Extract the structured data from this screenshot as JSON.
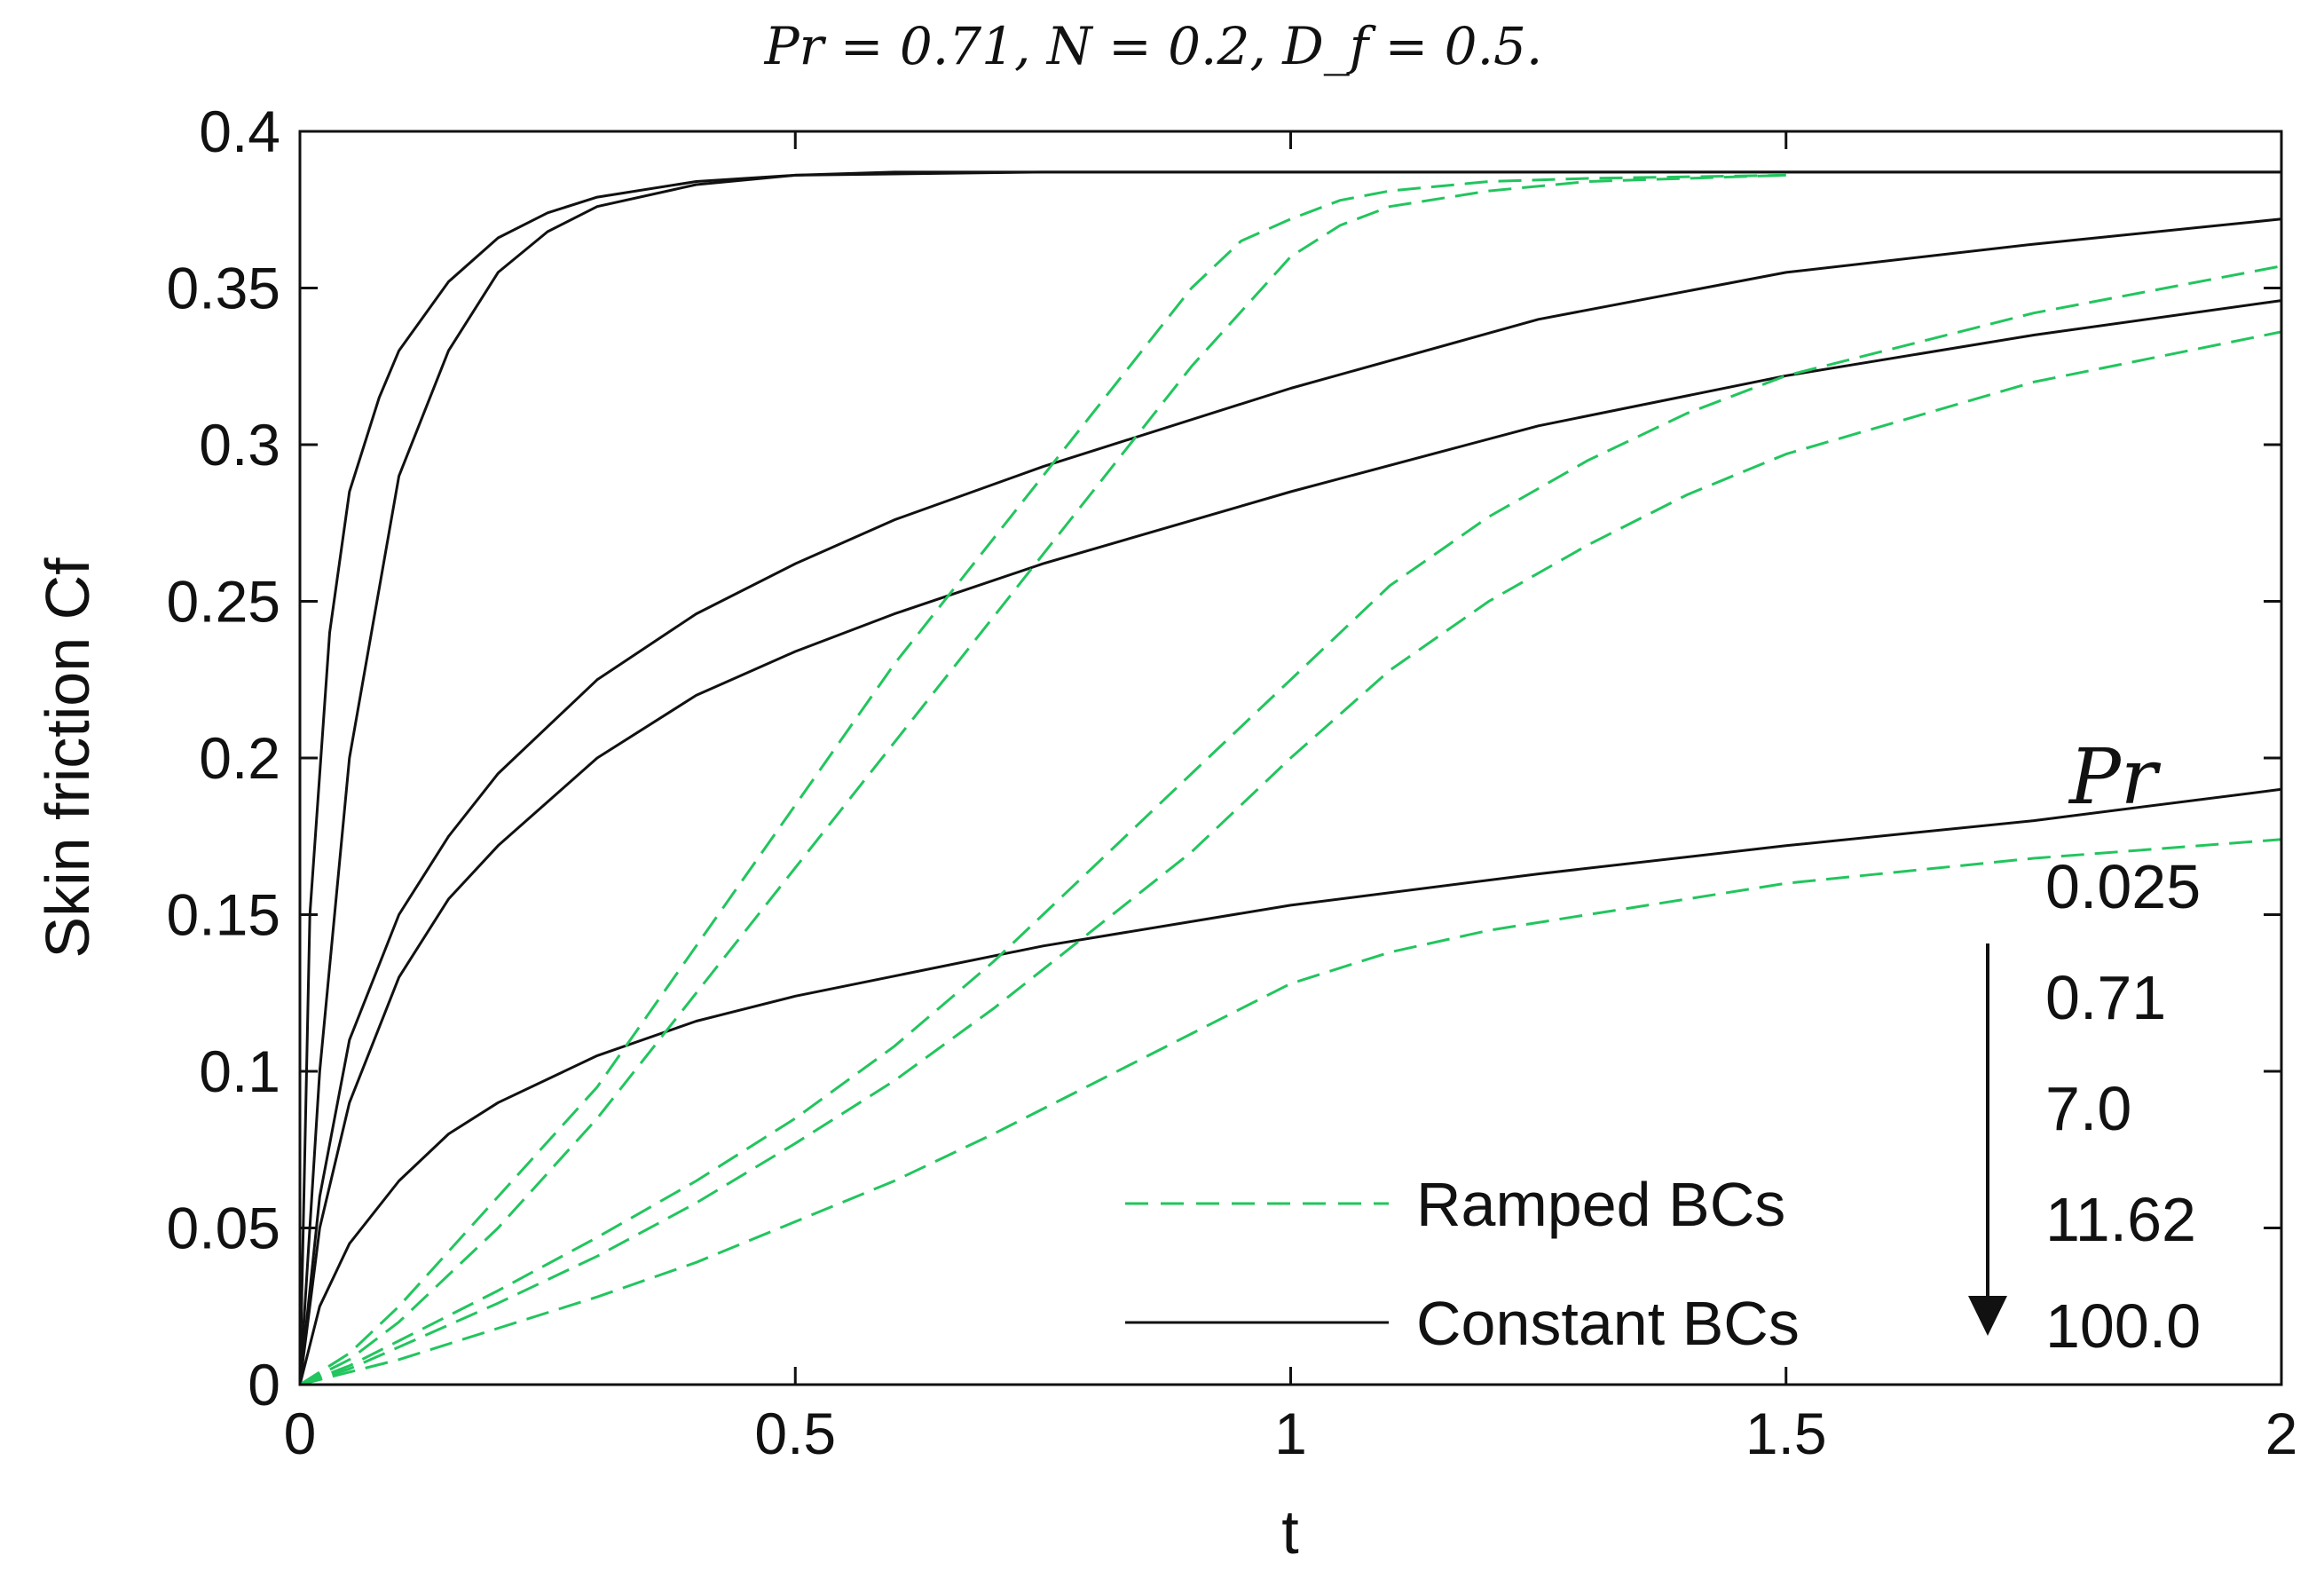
{
  "chart_data": {
    "type": "line",
    "title": "Pr = 0.71, N = 0.2, D_f = 0.5.",
    "xlabel": "t",
    "ylabel": "Skin friction Cf",
    "xlim": [
      0,
      2
    ],
    "ylim": [
      0,
      0.4
    ],
    "xticks": [
      0,
      0.5,
      1,
      1.5,
      2
    ],
    "xtick_labels": [
      "0",
      "0.5",
      "1",
      "1.5",
      "2"
    ],
    "yticks": [
      0,
      0.05,
      0.1,
      0.15,
      0.2,
      0.25,
      0.3,
      0.35,
      0.4
    ],
    "ytick_labels": [
      "0",
      "0.05",
      "0.1",
      "0.15",
      "0.2",
      "0.25",
      "0.3",
      "0.35",
      "0.4"
    ],
    "grid": false,
    "legend": {
      "position": "bottom-center",
      "entries": [
        {
          "label": "Ramped BCs",
          "style": "dashed",
          "color": "#22c55e"
        },
        {
          "label": "Constant BCs",
          "style": "solid",
          "color": "#111111"
        }
      ]
    },
    "annotation": {
      "title": "Pr",
      "values": [
        "0.025",
        "0.71",
        "7.0",
        "11.62",
        "100.0"
      ],
      "arrow": "down"
    },
    "series": [
      {
        "name": "Constant BCs, Pr = 0.025",
        "style": "solid",
        "color": "#111111",
        "x": [
          0,
          0.01,
          0.03,
          0.05,
          0.08,
          0.1,
          0.15,
          0.2,
          0.25,
          0.3,
          0.4,
          0.5,
          0.75,
          1.0,
          1.5,
          2.0
        ],
        "y": [
          0,
          0.15,
          0.24,
          0.285,
          0.315,
          0.33,
          0.352,
          0.366,
          0.374,
          0.379,
          0.384,
          0.386,
          0.387,
          0.387,
          0.387,
          0.387
        ]
      },
      {
        "name": "Constant BCs, Pr = 0.71",
        "style": "solid",
        "color": "#111111",
        "x": [
          0,
          0.02,
          0.05,
          0.1,
          0.15,
          0.2,
          0.25,
          0.3,
          0.4,
          0.5,
          0.6,
          0.75,
          1.0,
          1.5,
          2.0
        ],
        "y": [
          0,
          0.1,
          0.2,
          0.29,
          0.33,
          0.355,
          0.368,
          0.376,
          0.383,
          0.386,
          0.387,
          0.387,
          0.387,
          0.387,
          0.387
        ]
      },
      {
        "name": "Constant BCs, Pr = 7.0",
        "style": "solid",
        "color": "#111111",
        "x": [
          0,
          0.02,
          0.05,
          0.1,
          0.15,
          0.2,
          0.3,
          0.4,
          0.5,
          0.6,
          0.75,
          1.0,
          1.25,
          1.5,
          1.75,
          2.0
        ],
        "y": [
          0,
          0.06,
          0.11,
          0.15,
          0.175,
          0.195,
          0.225,
          0.246,
          0.262,
          0.276,
          0.293,
          0.318,
          0.34,
          0.355,
          0.364,
          0.372
        ]
      },
      {
        "name": "Constant BCs, Pr = 11.62",
        "style": "solid",
        "color": "#111111",
        "x": [
          0,
          0.02,
          0.05,
          0.1,
          0.15,
          0.2,
          0.3,
          0.4,
          0.5,
          0.6,
          0.75,
          1.0,
          1.25,
          1.5,
          1.75,
          2.0
        ],
        "y": [
          0,
          0.05,
          0.09,
          0.13,
          0.155,
          0.172,
          0.2,
          0.22,
          0.234,
          0.246,
          0.262,
          0.285,
          0.306,
          0.322,
          0.335,
          0.346
        ]
      },
      {
        "name": "Constant BCs, Pr = 100.0",
        "style": "solid",
        "color": "#111111",
        "x": [
          0,
          0.02,
          0.05,
          0.1,
          0.15,
          0.2,
          0.3,
          0.4,
          0.5,
          0.75,
          1.0,
          1.25,
          1.5,
          1.75,
          2.0
        ],
        "y": [
          0,
          0.025,
          0.045,
          0.065,
          0.08,
          0.09,
          0.105,
          0.116,
          0.124,
          0.14,
          0.153,
          0.163,
          0.172,
          0.18,
          0.19
        ]
      },
      {
        "name": "Ramped BCs, Pr = 0.025",
        "style": "dashed",
        "color": "#22c55e",
        "x": [
          0,
          0.05,
          0.1,
          0.2,
          0.3,
          0.4,
          0.5,
          0.6,
          0.7,
          0.8,
          0.9,
          0.95,
          1.0,
          1.05,
          1.1,
          1.2,
          1.3,
          1.5
        ],
        "y": [
          0,
          0.01,
          0.025,
          0.06,
          0.095,
          0.14,
          0.185,
          0.23,
          0.27,
          0.31,
          0.35,
          0.365,
          0.372,
          0.378,
          0.381,
          0.384,
          0.385,
          0.386
        ]
      },
      {
        "name": "Ramped BCs, Pr = 0.71",
        "style": "dashed",
        "color": "#22c55e",
        "x": [
          0,
          0.05,
          0.1,
          0.2,
          0.3,
          0.4,
          0.5,
          0.6,
          0.7,
          0.8,
          0.9,
          1.0,
          1.05,
          1.1,
          1.2,
          1.3,
          1.5
        ],
        "y": [
          0,
          0.008,
          0.02,
          0.05,
          0.085,
          0.125,
          0.165,
          0.205,
          0.245,
          0.285,
          0.325,
          0.36,
          0.37,
          0.376,
          0.381,
          0.384,
          0.386
        ]
      },
      {
        "name": "Ramped BCs, Pr = 7.0",
        "style": "dashed",
        "color": "#22c55e",
        "x": [
          0,
          0.05,
          0.1,
          0.2,
          0.3,
          0.4,
          0.5,
          0.6,
          0.7,
          0.8,
          0.9,
          1.0,
          1.1,
          1.2,
          1.3,
          1.4,
          1.5,
          1.75,
          2.0
        ],
        "y": [
          0,
          0.006,
          0.014,
          0.03,
          0.047,
          0.065,
          0.085,
          0.108,
          0.135,
          0.165,
          0.195,
          0.225,
          0.255,
          0.277,
          0.295,
          0.31,
          0.322,
          0.342,
          0.357
        ]
      },
      {
        "name": "Ramped BCs, Pr = 11.62",
        "style": "dashed",
        "color": "#22c55e",
        "x": [
          0,
          0.05,
          0.1,
          0.2,
          0.3,
          0.4,
          0.5,
          0.6,
          0.7,
          0.8,
          0.9,
          1.0,
          1.1,
          1.2,
          1.3,
          1.4,
          1.5,
          1.75,
          2.0
        ],
        "y": [
          0,
          0.005,
          0.012,
          0.026,
          0.041,
          0.058,
          0.077,
          0.097,
          0.12,
          0.145,
          0.17,
          0.2,
          0.228,
          0.25,
          0.268,
          0.284,
          0.297,
          0.32,
          0.336
        ]
      },
      {
        "name": "Ramped BCs, Pr = 100.0",
        "style": "dashed",
        "color": "#22c55e",
        "x": [
          0,
          0.1,
          0.2,
          0.3,
          0.4,
          0.5,
          0.6,
          0.7,
          0.8,
          0.9,
          1.0,
          1.1,
          1.2,
          1.3,
          1.4,
          1.5,
          1.75,
          2.0
        ],
        "y": [
          0,
          0.008,
          0.018,
          0.028,
          0.039,
          0.052,
          0.065,
          0.08,
          0.096,
          0.112,
          0.128,
          0.138,
          0.145,
          0.15,
          0.155,
          0.16,
          0.168,
          0.174
        ]
      }
    ]
  }
}
